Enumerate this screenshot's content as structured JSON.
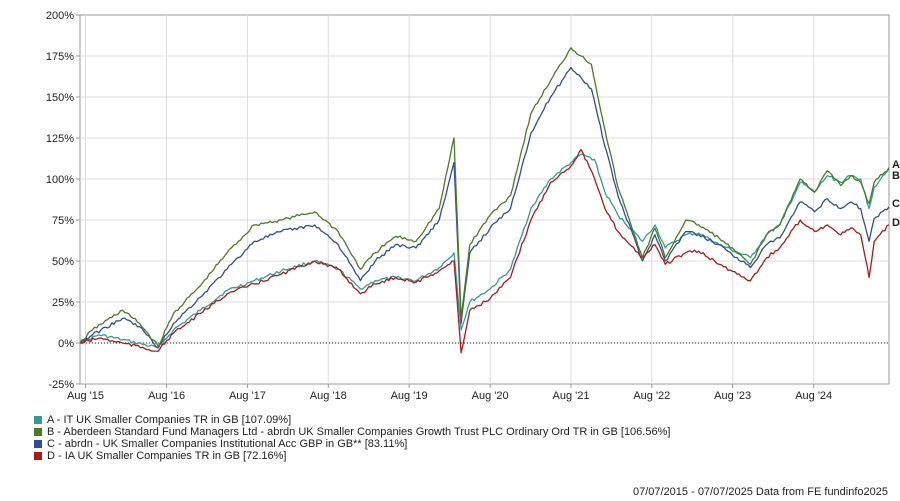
{
  "chart_data": {
    "type": "line",
    "title": "",
    "xlabel": "",
    "ylabel": "",
    "ylim": [
      -25,
      200
    ],
    "y_ticks": [
      -25,
      0,
      25,
      50,
      75,
      100,
      125,
      150,
      175,
      200
    ],
    "y_tick_labels": [
      "-25%",
      "0%",
      "25%",
      "50%",
      "75%",
      "100%",
      "125%",
      "150%",
      "175%",
      "200%"
    ],
    "x_start": "2015-07-07",
    "x_end": "2025-07-07",
    "x_ticks": [
      "2015-08-01",
      "2016-08-01",
      "2017-08-01",
      "2018-08-01",
      "2019-08-01",
      "2020-08-01",
      "2021-08-01",
      "2022-08-01",
      "2023-08-01",
      "2024-08-01"
    ],
    "x_tick_labels": [
      "Aug '15",
      "Aug '16",
      "Aug '17",
      "Aug '18",
      "Aug '19",
      "Aug '20",
      "Aug '21",
      "Aug '22",
      "Aug '23",
      "Aug '24"
    ],
    "grid": true,
    "legend_position": "bottom-left",
    "zero_line": "dotted",
    "series": [
      {
        "name": "A - IT UK Smaller Companies TR in GB [107.09%]",
        "end_label": "A",
        "color": "#2e9e96",
        "points": [
          [
            "2015-07-07",
            0
          ],
          [
            "2015-10-01",
            5
          ],
          [
            "2016-01-15",
            2
          ],
          [
            "2016-06-24",
            -3
          ],
          [
            "2016-09-01",
            8
          ],
          [
            "2017-01-01",
            20
          ],
          [
            "2017-05-01",
            32
          ],
          [
            "2017-09-01",
            38
          ],
          [
            "2018-01-01",
            44
          ],
          [
            "2018-06-01",
            50
          ],
          [
            "2018-09-15",
            45
          ],
          [
            "2018-12-24",
            33
          ],
          [
            "2019-03-01",
            38
          ],
          [
            "2019-06-01",
            40
          ],
          [
            "2019-09-01",
            38
          ],
          [
            "2019-12-15",
            46
          ],
          [
            "2020-02-20",
            55
          ],
          [
            "2020-03-23",
            8
          ],
          [
            "2020-05-01",
            25
          ],
          [
            "2020-08-01",
            33
          ],
          [
            "2020-11-01",
            45
          ],
          [
            "2021-02-01",
            82
          ],
          [
            "2021-05-01",
            100
          ],
          [
            "2021-08-01",
            110
          ],
          [
            "2021-09-15",
            115
          ],
          [
            "2021-11-15",
            112
          ],
          [
            "2022-01-01",
            92
          ],
          [
            "2022-03-01",
            78
          ],
          [
            "2022-06-20",
            62
          ],
          [
            "2022-08-15",
            72
          ],
          [
            "2022-10-01",
            58
          ],
          [
            "2023-01-01",
            66
          ],
          [
            "2023-03-01",
            67
          ],
          [
            "2023-06-01",
            60
          ],
          [
            "2023-10-20",
            52
          ],
          [
            "2024-01-01",
            66
          ],
          [
            "2024-03-01",
            72
          ],
          [
            "2024-06-01",
            98
          ],
          [
            "2024-08-05",
            92
          ],
          [
            "2024-10-01",
            102
          ],
          [
            "2024-12-01",
            98
          ],
          [
            "2025-01-15",
            102
          ],
          [
            "2025-03-01",
            100
          ],
          [
            "2025-04-08",
            82
          ],
          [
            "2025-05-01",
            95
          ],
          [
            "2025-07-07",
            107.09
          ]
        ]
      },
      {
        "name": "B - Aberdeen Standard Fund Managers Ltd - abrdn UK Smaller Companies Growth Trust PLC Ordinary Ord TR in GB [106.56%]",
        "end_label": "B",
        "color": "#4b7d1c",
        "points": [
          [
            "2015-07-07",
            0
          ],
          [
            "2015-09-01",
            8
          ],
          [
            "2016-01-15",
            20
          ],
          [
            "2016-04-01",
            12
          ],
          [
            "2016-06-24",
            -2
          ],
          [
            "2016-09-01",
            18
          ],
          [
            "2017-01-01",
            35
          ],
          [
            "2017-05-01",
            55
          ],
          [
            "2017-09-01",
            72
          ],
          [
            "2018-01-01",
            75
          ],
          [
            "2018-06-01",
            80
          ],
          [
            "2018-09-15",
            68
          ],
          [
            "2018-12-24",
            45
          ],
          [
            "2019-03-01",
            55
          ],
          [
            "2019-06-01",
            65
          ],
          [
            "2019-09-01",
            62
          ],
          [
            "2019-12-15",
            82
          ],
          [
            "2020-02-20",
            125
          ],
          [
            "2020-03-23",
            15
          ],
          [
            "2020-05-01",
            60
          ],
          [
            "2020-08-01",
            78
          ],
          [
            "2020-11-01",
            90
          ],
          [
            "2021-02-01",
            140
          ],
          [
            "2021-05-01",
            160
          ],
          [
            "2021-08-01",
            180
          ],
          [
            "2021-09-15",
            175
          ],
          [
            "2021-11-01",
            170
          ],
          [
            "2022-01-01",
            130
          ],
          [
            "2022-03-01",
            95
          ],
          [
            "2022-06-20",
            52
          ],
          [
            "2022-08-15",
            70
          ],
          [
            "2022-10-01",
            52
          ],
          [
            "2023-01-01",
            75
          ],
          [
            "2023-03-01",
            72
          ],
          [
            "2023-06-01",
            64
          ],
          [
            "2023-10-20",
            48
          ],
          [
            "2024-01-01",
            66
          ],
          [
            "2024-03-01",
            72
          ],
          [
            "2024-06-01",
            100
          ],
          [
            "2024-08-05",
            92
          ],
          [
            "2024-10-01",
            105
          ],
          [
            "2024-12-01",
            96
          ],
          [
            "2025-01-15",
            102
          ],
          [
            "2025-03-01",
            98
          ],
          [
            "2025-04-08",
            85
          ],
          [
            "2025-05-01",
            98
          ],
          [
            "2025-07-07",
            106.56
          ]
        ]
      },
      {
        "name": "C - abrdn - UK Smaller Companies Institutional Acc GBP in GB** [83.11%]",
        "end_label": "C",
        "color": "#2b4fa0",
        "points": [
          [
            "2015-07-07",
            0
          ],
          [
            "2015-09-01",
            5
          ],
          [
            "2016-01-15",
            15
          ],
          [
            "2016-04-01",
            10
          ],
          [
            "2016-06-24",
            -3
          ],
          [
            "2016-09-01",
            12
          ],
          [
            "2017-01-01",
            28
          ],
          [
            "2017-05-01",
            45
          ],
          [
            "2017-09-01",
            62
          ],
          [
            "2018-01-01",
            68
          ],
          [
            "2018-06-01",
            72
          ],
          [
            "2018-09-15",
            60
          ],
          [
            "2018-12-24",
            38
          ],
          [
            "2019-03-01",
            50
          ],
          [
            "2019-06-01",
            60
          ],
          [
            "2019-09-01",
            58
          ],
          [
            "2019-12-15",
            75
          ],
          [
            "2020-02-20",
            110
          ],
          [
            "2020-03-23",
            12
          ],
          [
            "2020-05-01",
            55
          ],
          [
            "2020-08-01",
            70
          ],
          [
            "2020-11-01",
            82
          ],
          [
            "2021-02-01",
            128
          ],
          [
            "2021-05-01",
            150
          ],
          [
            "2021-08-01",
            168
          ],
          [
            "2021-09-15",
            162
          ],
          [
            "2021-11-01",
            155
          ],
          [
            "2022-01-01",
            120
          ],
          [
            "2022-03-01",
            90
          ],
          [
            "2022-06-20",
            50
          ],
          [
            "2022-08-15",
            66
          ],
          [
            "2022-10-01",
            50
          ],
          [
            "2023-01-01",
            68
          ],
          [
            "2023-03-01",
            66
          ],
          [
            "2023-06-01",
            60
          ],
          [
            "2023-10-20",
            46
          ],
          [
            "2024-01-01",
            60
          ],
          [
            "2024-03-01",
            64
          ],
          [
            "2024-06-01",
            86
          ],
          [
            "2024-08-05",
            80
          ],
          [
            "2024-10-01",
            88
          ],
          [
            "2024-12-01",
            82
          ],
          [
            "2025-01-15",
            86
          ],
          [
            "2025-03-01",
            82
          ],
          [
            "2025-04-08",
            62
          ],
          [
            "2025-05-01",
            76
          ],
          [
            "2025-07-07",
            83.11
          ]
        ]
      },
      {
        "name": "D - IA UK Smaller Companies TR in GB [72.16%]",
        "end_label": "D",
        "color": "#b01818",
        "points": [
          [
            "2015-07-07",
            0
          ],
          [
            "2015-10-01",
            3
          ],
          [
            "2016-01-15",
            0
          ],
          [
            "2016-06-24",
            -5
          ],
          [
            "2016-09-01",
            6
          ],
          [
            "2017-01-01",
            18
          ],
          [
            "2017-05-01",
            30
          ],
          [
            "2017-09-01",
            36
          ],
          [
            "2018-01-01",
            42
          ],
          [
            "2018-06-01",
            50
          ],
          [
            "2018-09-15",
            45
          ],
          [
            "2018-12-24",
            30
          ],
          [
            "2019-03-01",
            36
          ],
          [
            "2019-06-01",
            40
          ],
          [
            "2019-09-01",
            37
          ],
          [
            "2019-12-15",
            44
          ],
          [
            "2020-02-20",
            50
          ],
          [
            "2020-03-23",
            -6
          ],
          [
            "2020-05-01",
            20
          ],
          [
            "2020-08-01",
            27
          ],
          [
            "2020-11-01",
            40
          ],
          [
            "2021-02-01",
            75
          ],
          [
            "2021-05-01",
            98
          ],
          [
            "2021-08-01",
            108
          ],
          [
            "2021-09-15",
            118
          ],
          [
            "2021-11-01",
            105
          ],
          [
            "2022-01-01",
            82
          ],
          [
            "2022-03-01",
            68
          ],
          [
            "2022-06-20",
            52
          ],
          [
            "2022-08-15",
            60
          ],
          [
            "2022-10-01",
            48
          ],
          [
            "2023-01-01",
            55
          ],
          [
            "2023-03-01",
            56
          ],
          [
            "2023-06-01",
            48
          ],
          [
            "2023-10-20",
            38
          ],
          [
            "2024-01-01",
            52
          ],
          [
            "2024-03-01",
            58
          ],
          [
            "2024-06-01",
            75
          ],
          [
            "2024-08-05",
            68
          ],
          [
            "2024-10-01",
            72
          ],
          [
            "2024-12-01",
            66
          ],
          [
            "2025-01-15",
            70
          ],
          [
            "2025-03-01",
            66
          ],
          [
            "2025-04-08",
            40
          ],
          [
            "2025-05-01",
            62
          ],
          [
            "2025-07-07",
            72.16
          ]
        ]
      }
    ]
  },
  "footer": {
    "text": "07/07/2015 - 07/07/2025 Data from FE fundinfo2025"
  }
}
